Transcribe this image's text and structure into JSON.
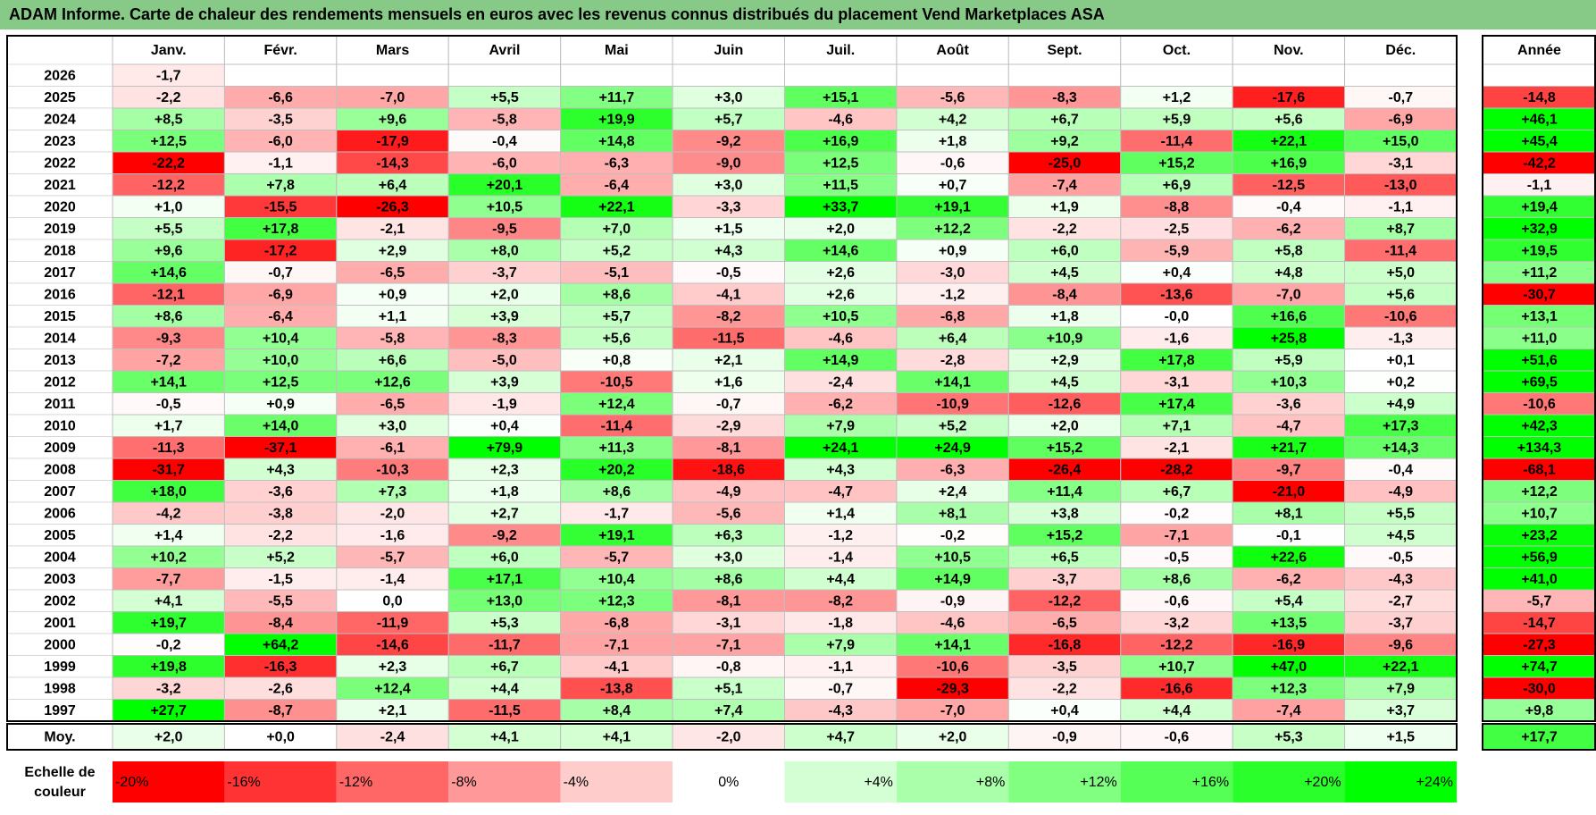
{
  "title": "ADAM Informe. Carte de chaleur des rendements mensuels en euros avec les revenus connus distribués du placement Vend Marketplaces ASA",
  "chart_data": {
    "type": "heatmap",
    "months": [
      "Janv.",
      "Févr.",
      "Mars",
      "Avril",
      "Mai",
      "Juin",
      "Juil.",
      "Août",
      "Sept.",
      "Oct.",
      "Nov.",
      "Déc."
    ],
    "year_header": "Année",
    "rows": [
      {
        "year": "2026",
        "months": [
          "-1,7",
          "",
          "",
          "",
          "",
          "",
          "",
          "",
          "",
          "",
          "",
          ""
        ],
        "annual": ""
      },
      {
        "year": "2025",
        "months": [
          "-2,2",
          "-6,6",
          "-7,0",
          "+5,5",
          "+11,7",
          "+3,0",
          "+15,1",
          "-5,6",
          "-8,3",
          "+1,2",
          "-17,6",
          "-0,7"
        ],
        "annual": "-14,8"
      },
      {
        "year": "2024",
        "months": [
          "+8,5",
          "-3,5",
          "+9,6",
          "-5,8",
          "+19,9",
          "+5,7",
          "-4,6",
          "+4,2",
          "+6,7",
          "+5,9",
          "+5,6",
          "-6,9"
        ],
        "annual": "+46,1"
      },
      {
        "year": "2023",
        "months": [
          "+12,5",
          "-6,0",
          "-17,9",
          "-0,4",
          "+14,8",
          "-9,2",
          "+16,9",
          "+1,8",
          "+9,2",
          "-11,4",
          "+22,1",
          "+15,0"
        ],
        "annual": "+45,4"
      },
      {
        "year": "2022",
        "months": [
          "-22,2",
          "-1,1",
          "-14,3",
          "-6,0",
          "-6,3",
          "-9,0",
          "+12,5",
          "-0,6",
          "-25,0",
          "+15,2",
          "+16,9",
          "-3,1"
        ],
        "annual": "-42,2"
      },
      {
        "year": "2021",
        "months": [
          "-12,2",
          "+7,8",
          "+6,4",
          "+20,1",
          "-6,4",
          "+3,0",
          "+11,5",
          "+0,7",
          "-7,4",
          "+6,9",
          "-12,5",
          "-13,0"
        ],
        "annual": "-1,1"
      },
      {
        "year": "2020",
        "months": [
          "+1,0",
          "-15,5",
          "-26,3",
          "+10,5",
          "+22,1",
          "-3,3",
          "+33,7",
          "+19,1",
          "+1,9",
          "-8,8",
          "-0,4",
          "-1,1"
        ],
        "annual": "+19,4"
      },
      {
        "year": "2019",
        "months": [
          "+5,5",
          "+17,8",
          "-2,1",
          "-9,5",
          "+7,0",
          "+1,5",
          "+2,0",
          "+12,2",
          "-2,2",
          "-2,5",
          "-6,2",
          "+8,7"
        ],
        "annual": "+32,9"
      },
      {
        "year": "2018",
        "months": [
          "+9,6",
          "-17,2",
          "+2,9",
          "+8,0",
          "+5,2",
          "+4,3",
          "+14,6",
          "+0,9",
          "+6,0",
          "-5,9",
          "+5,8",
          "-11,4"
        ],
        "annual": "+19,5"
      },
      {
        "year": "2017",
        "months": [
          "+14,6",
          "-0,7",
          "-6,5",
          "-3,7",
          "-5,1",
          "-0,5",
          "+2,6",
          "-3,0",
          "+4,5",
          "+0,4",
          "+4,8",
          "+5,0"
        ],
        "annual": "+11,2"
      },
      {
        "year": "2016",
        "months": [
          "-12,1",
          "-6,9",
          "+0,9",
          "+2,0",
          "+8,6",
          "-4,1",
          "+2,6",
          "-1,2",
          "-8,4",
          "-13,6",
          "-7,0",
          "+5,6"
        ],
        "annual": "-30,7"
      },
      {
        "year": "2015",
        "months": [
          "+8,6",
          "-6,4",
          "+1,1",
          "+3,9",
          "+5,7",
          "-8,2",
          "+10,5",
          "-6,8",
          "+1,8",
          "-0,0",
          "+16,6",
          "-10,6"
        ],
        "annual": "+13,1"
      },
      {
        "year": "2014",
        "months": [
          "-9,3",
          "+10,4",
          "-5,8",
          "-8,3",
          "+5,6",
          "-11,5",
          "-4,6",
          "+6,4",
          "+10,9",
          "-1,6",
          "+25,8",
          "-1,3"
        ],
        "annual": "+11,0"
      },
      {
        "year": "2013",
        "months": [
          "-7,2",
          "+10,0",
          "+6,6",
          "-5,0",
          "+0,8",
          "+2,1",
          "+14,9",
          "-2,8",
          "+2,9",
          "+17,8",
          "+5,9",
          "+0,1"
        ],
        "annual": "+51,6"
      },
      {
        "year": "2012",
        "months": [
          "+14,1",
          "+12,5",
          "+12,6",
          "+3,9",
          "-10,5",
          "+1,6",
          "-2,4",
          "+14,1",
          "+4,5",
          "-3,1",
          "+10,3",
          "+0,2"
        ],
        "annual": "+69,5"
      },
      {
        "year": "2011",
        "months": [
          "-0,5",
          "+0,9",
          "-6,5",
          "-1,9",
          "+12,4",
          "-0,7",
          "-6,2",
          "-10,9",
          "-12,6",
          "+17,4",
          "-3,6",
          "+4,9"
        ],
        "annual": "-10,6"
      },
      {
        "year": "2010",
        "months": [
          "+1,7",
          "+14,0",
          "+3,0",
          "+0,4",
          "-11,4",
          "-2,9",
          "+7,9",
          "+5,2",
          "+2,0",
          "+7,1",
          "-4,7",
          "+17,3"
        ],
        "annual": "+42,3"
      },
      {
        "year": "2009",
        "months": [
          "-11,3",
          "-37,1",
          "-6,1",
          "+79,9",
          "+11,3",
          "-8,1",
          "+24,1",
          "+24,9",
          "+15,2",
          "-2,1",
          "+21,7",
          "+14,3"
        ],
        "annual": "+134,3"
      },
      {
        "year": "2008",
        "months": [
          "-31,7",
          "+4,3",
          "-10,3",
          "+2,3",
          "+20,2",
          "-18,6",
          "+4,3",
          "-6,3",
          "-26,4",
          "-28,2",
          "-9,7",
          "-0,4"
        ],
        "annual": "-68,1"
      },
      {
        "year": "2007",
        "months": [
          "+18,0",
          "-3,6",
          "+7,3",
          "+1,8",
          "+8,6",
          "-4,9",
          "-4,7",
          "+2,4",
          "+11,4",
          "+6,7",
          "-21,0",
          "-4,9"
        ],
        "annual": "+12,2"
      },
      {
        "year": "2006",
        "months": [
          "-4,2",
          "-3,8",
          "-2,0",
          "+2,7",
          "-1,7",
          "-5,6",
          "+1,4",
          "+8,1",
          "+3,8",
          "-0,2",
          "+8,1",
          "+5,5"
        ],
        "annual": "+10,7"
      },
      {
        "year": "2005",
        "months": [
          "+1,4",
          "-2,2",
          "-1,6",
          "-9,2",
          "+19,1",
          "+6,3",
          "-1,2",
          "-0,2",
          "+15,2",
          "-7,1",
          "-0,1",
          "+4,5"
        ],
        "annual": "+23,2"
      },
      {
        "year": "2004",
        "months": [
          "+10,2",
          "+5,2",
          "-5,7",
          "+6,0",
          "-5,7",
          "+3,0",
          "-1,4",
          "+10,5",
          "+6,5",
          "-0,5",
          "+22,6",
          "-0,5"
        ],
        "annual": "+56,9"
      },
      {
        "year": "2003",
        "months": [
          "-7,7",
          "-1,5",
          "-1,4",
          "+17,1",
          "+10,4",
          "+8,6",
          "+4,4",
          "+14,9",
          "-3,7",
          "+8,6",
          "-6,2",
          "-4,3"
        ],
        "annual": "+41,0"
      },
      {
        "year": "2002",
        "months": [
          "+4,1",
          "-5,5",
          "0,0",
          "+13,0",
          "+12,3",
          "-8,1",
          "-8,2",
          "-0,9",
          "-12,2",
          "-0,6",
          "+5,4",
          "-2,7"
        ],
        "annual": "-5,7"
      },
      {
        "year": "2001",
        "months": [
          "+19,7",
          "-8,4",
          "-11,9",
          "+5,3",
          "-6,8",
          "-3,1",
          "-1,8",
          "-4,6",
          "-6,5",
          "-3,2",
          "+13,5",
          "-3,7"
        ],
        "annual": "-14,7"
      },
      {
        "year": "2000",
        "months": [
          "-0,2",
          "+64,2",
          "-14,6",
          "-11,7",
          "-7,1",
          "-7,1",
          "+7,9",
          "+14,1",
          "-16,8",
          "-12,2",
          "-16,9",
          "-9,6"
        ],
        "annual": "-27,3"
      },
      {
        "year": "1999",
        "months": [
          "+19,8",
          "-16,3",
          "+2,3",
          "+6,7",
          "-4,1",
          "-0,8",
          "-1,1",
          "-10,6",
          "-3,5",
          "+10,7",
          "+47,0",
          "+22,1"
        ],
        "annual": "+74,7"
      },
      {
        "year": "1998",
        "months": [
          "-3,2",
          "-2,6",
          "+12,4",
          "+4,4",
          "-13,8",
          "+5,1",
          "-0,7",
          "-29,3",
          "-2,2",
          "-16,6",
          "+12,3",
          "+7,9"
        ],
        "annual": "-30,0"
      },
      {
        "year": "1997",
        "months": [
          "+27,7",
          "-8,7",
          "+2,1",
          "-11,5",
          "+8,4",
          "+7,4",
          "-4,3",
          "-7,0",
          "+0,4",
          "+4,4",
          "-7,4",
          "+3,7"
        ],
        "annual": "+9,8"
      }
    ],
    "average": {
      "label": "Moy.",
      "months": [
        "+2,0",
        "+0,0",
        "-2,4",
        "+4,1",
        "+4,1",
        "-2,0",
        "+4,7",
        "+2,0",
        "-0,9",
        "-0,6",
        "+5,3",
        "+1,5"
      ],
      "annual": "+17,7"
    },
    "scale": {
      "label_line1": "Echelle de",
      "label_line2": "couleur",
      "items": [
        {
          "text": "-20%",
          "value": -20,
          "color": "#ff0000"
        },
        {
          "text": "-16%",
          "value": -16,
          "color": "#ff3333"
        },
        {
          "text": "-12%",
          "value": -12,
          "color": "#ff6666"
        },
        {
          "text": "-8%",
          "value": -8,
          "color": "#ff9999"
        },
        {
          "text": "-4%",
          "value": -4,
          "color": "#ffcccc"
        },
        {
          "text": "0%",
          "value": 0,
          "color": "#ffffff"
        },
        {
          "text": "+4%",
          "value": 4,
          "color": "#d4ffd4"
        },
        {
          "text": "+8%",
          "value": 8,
          "color": "#aaffaa"
        },
        {
          "text": "+12%",
          "value": 12,
          "color": "#80ff80"
        },
        {
          "text": "+16%",
          "value": 16,
          "color": "#55ff55"
        },
        {
          "text": "+20%",
          "value": 20,
          "color": "#2bff2b"
        },
        {
          "text": "+24%",
          "value": 24,
          "color": "#00ff00"
        }
      ]
    }
  }
}
